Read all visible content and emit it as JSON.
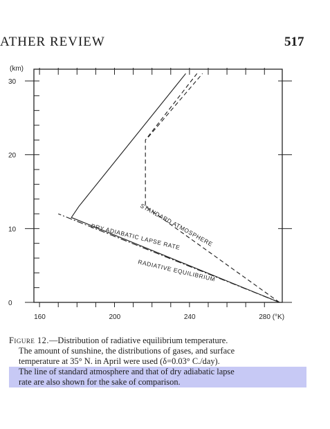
{
  "header": {
    "running_title": "ATHER REVIEW",
    "page_number": "517"
  },
  "chart_data": {
    "type": "line",
    "xlabel": "(°K)",
    "ylabel": "(km)",
    "xlim": [
      160,
      290
    ],
    "ylim": [
      0,
      31
    ],
    "x_ticks": [
      160,
      200,
      240,
      280
    ],
    "x_tick_labels": [
      "160",
      "200",
      "240",
      "280 (°K)"
    ],
    "y_ticks": [
      0,
      10,
      20,
      30
    ],
    "y_tick_labels": [
      "0",
      "10",
      "20",
      "30"
    ],
    "series": [
      {
        "name": "STANDARD ATMOSPHERE",
        "style": "dashed",
        "points": [
          [
            288,
            0
          ],
          [
            216.5,
            13
          ],
          [
            216.5,
            22
          ],
          [
            244,
            31
          ]
        ]
      },
      {
        "name": "DRY ADIABATIC LAPSE RATE",
        "style": "dash-dot",
        "points": [
          [
            288,
            0
          ],
          [
            170,
            12
          ]
        ]
      },
      {
        "name": "RADIATIVE EQUILIBRIUM",
        "style": "solid",
        "points": [
          [
            288,
            0
          ],
          [
            177,
            11.5
          ],
          [
            181,
            13
          ],
          [
            238,
            31
          ]
        ]
      }
    ],
    "grid": false
  },
  "caption": {
    "label": "Figure 12.",
    "lines": [
      "—Distribution of radiative equilibrium temperature.",
      "The amount of sunshine, the distributions of gases, and surface",
      "temperature at 35° N. in April were used (δ=0.03° C./day).",
      "The line of standard atmosphere and that of dry adiabatic lapse",
      "rate are also shown for the sake of comparison."
    ]
  },
  "colors": {
    "highlight": "#c7c9f5",
    "ink": "#1a1a1a"
  }
}
